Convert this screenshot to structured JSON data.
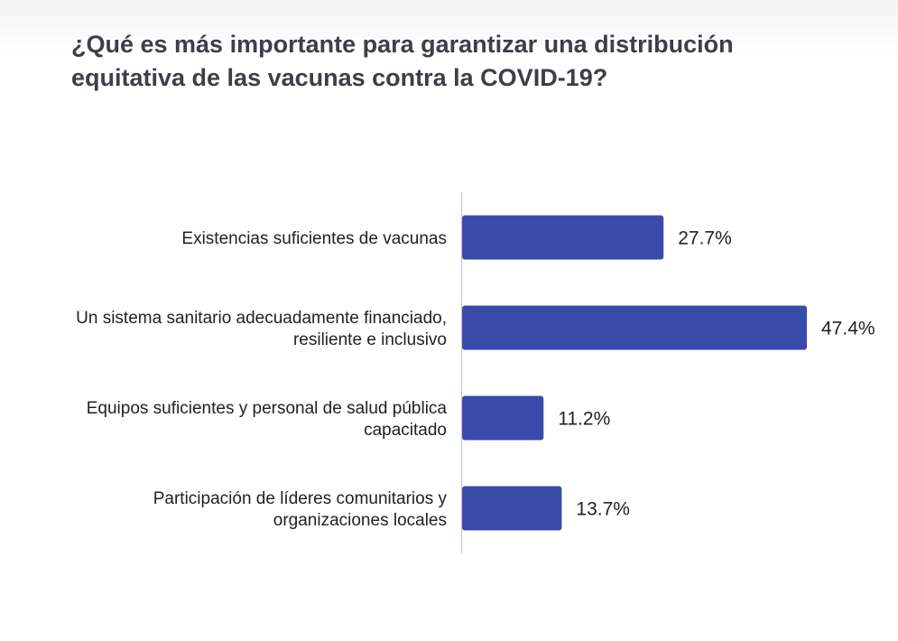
{
  "chart_data": {
    "type": "bar",
    "orientation": "horizontal",
    "title": "¿Qué es más importante para garantizar una distribución equitativa de las vacunas contra la COVID-19?",
    "categories": [
      [
        "Existencias suficientes de vacunas"
      ],
      [
        "Un sistema sanitario adecuadamente financiado,",
        "resiliente e inclusivo"
      ],
      [
        "Equipos suficientes y personal de salud pública",
        "capacitado"
      ],
      [
        "Participación de líderes comunitarios y",
        "organizaciones locales"
      ]
    ],
    "values": [
      27.7,
      47.4,
      11.2,
      13.7
    ],
    "value_labels": [
      "27.7%",
      "47.4%",
      "11.2%",
      "13.7%"
    ],
    "unit": "%",
    "xlim": [
      0,
      47.4
    ],
    "xlabel": "",
    "ylabel": "",
    "grid": false,
    "legend": "none",
    "bar_color": "#3a4aab",
    "axis_color": "#c8c8c8"
  }
}
